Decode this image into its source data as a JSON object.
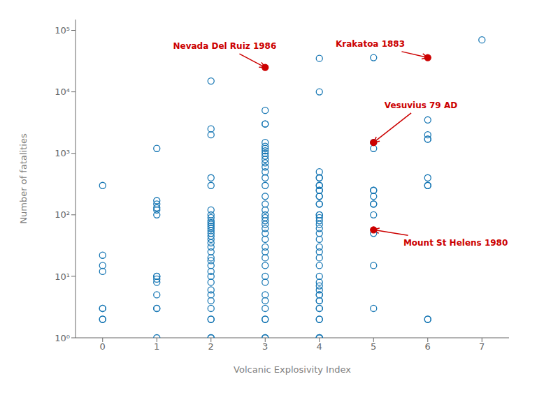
{
  "chart_data": {
    "type": "scatter",
    "xlabel": "Volcanic Explosivity Index",
    "ylabel": "Number of fatalities",
    "xlim": [
      -0.5,
      7.5
    ],
    "ylim": [
      1,
      150000
    ],
    "xticks": [
      0,
      1,
      2,
      3,
      4,
      5,
      6,
      7
    ],
    "yticks": [
      {
        "value": 1,
        "label": "10⁰"
      },
      {
        "value": 10,
        "label": "10¹"
      },
      {
        "value": 100,
        "label": "10²"
      },
      {
        "value": 1000,
        "label": "10³"
      },
      {
        "value": 10000,
        "label": "10⁴"
      },
      {
        "value": 100000,
        "label": "10⁵"
      }
    ],
    "log": "y",
    "grid": false,
    "series": [
      {
        "color": "#1777b4",
        "marker": "circle_open",
        "x": [
          0,
          0,
          0,
          0,
          0,
          0,
          0,
          0,
          1,
          1,
          1,
          1,
          1,
          1,
          1,
          1,
          1,
          1,
          1,
          1,
          1,
          1,
          2,
          2,
          2,
          2,
          2,
          2,
          2,
          2,
          2,
          2,
          2,
          2,
          2,
          2,
          2,
          2,
          2,
          2,
          2,
          2,
          2,
          2,
          2,
          2,
          2,
          2,
          2,
          2,
          2,
          2,
          2,
          2,
          2,
          2,
          3,
          3,
          3,
          3,
          3,
          3,
          3,
          3,
          3,
          3,
          3,
          3,
          3,
          3,
          3,
          3,
          3,
          3,
          3,
          3,
          3,
          3,
          3,
          3,
          3,
          3,
          3,
          3,
          3,
          3,
          3,
          3,
          3,
          3,
          3,
          3,
          3,
          3,
          4,
          4,
          4,
          4,
          4,
          4,
          4,
          4,
          4,
          4,
          4,
          4,
          4,
          4,
          4,
          4,
          4,
          4,
          4,
          4,
          4,
          4,
          4,
          4,
          4,
          4,
          4,
          4,
          4,
          4,
          4,
          4,
          4,
          4,
          4,
          4,
          4,
          4,
          4,
          4,
          5,
          5,
          5,
          5,
          5,
          5,
          5,
          5,
          5,
          5,
          5,
          5,
          6,
          6,
          6,
          6,
          6,
          6,
          6,
          6,
          6,
          7
        ],
        "values": [
          300,
          22,
          15,
          12,
          3,
          3,
          2,
          2,
          1200,
          170,
          150,
          130,
          120,
          100,
          10,
          10,
          9,
          8,
          5,
          3,
          3,
          1,
          15000,
          2500,
          2000,
          400,
          300,
          120,
          100,
          90,
          80,
          75,
          70,
          65,
          60,
          55,
          50,
          45,
          40,
          35,
          30,
          25,
          20,
          18,
          15,
          12,
          10,
          8,
          6,
          5,
          4,
          3,
          2,
          2,
          1,
          1,
          5000,
          3000,
          3000,
          1500,
          1300,
          1200,
          1100,
          1000,
          900,
          800,
          700,
          600,
          500,
          400,
          300,
          200,
          150,
          120,
          100,
          90,
          80,
          70,
          60,
          50,
          40,
          30,
          25,
          20,
          15,
          10,
          8,
          5,
          4,
          3,
          2,
          2,
          1,
          1,
          35000,
          10000,
          500,
          400,
          400,
          300,
          300,
          250,
          250,
          200,
          200,
          150,
          150,
          100,
          100,
          90,
          80,
          70,
          60,
          50,
          40,
          30,
          25,
          20,
          15,
          10,
          8,
          7,
          6,
          5,
          5,
          4,
          4,
          3,
          3,
          2,
          2,
          1,
          1,
          1,
          36000,
          1500,
          1200,
          250,
          250,
          200,
          150,
          150,
          100,
          50,
          15,
          3,
          3500,
          2000,
          1700,
          1700,
          400,
          300,
          300,
          2,
          2,
          70000
        ]
      },
      {
        "color": "#cc0000",
        "marker": "circle",
        "x": [
          3,
          6,
          5,
          5
        ],
        "values": [
          25000,
          36000,
          1500,
          57
        ]
      }
    ],
    "annotations": [
      {
        "text": "Nevada Del Ruiz 1986",
        "x": 3.0,
        "y": 25000,
        "text_x": 1.3,
        "text_y": 55000,
        "color": "#cc0000"
      },
      {
        "text": "Krakatoa 1883",
        "x": 6.0,
        "y": 36000,
        "text_x": 4.3,
        "text_y": 60000,
        "color": "#cc0000"
      },
      {
        "text": "Vesuvius 79 AD",
        "x": 5.0,
        "y": 1500,
        "text_x": 5.2,
        "text_y": 6000,
        "color": "#cc0000"
      },
      {
        "text": "Mount St Helens 1980",
        "x": 5.0,
        "y": 57,
        "text_x": 5.55,
        "text_y": 35,
        "color": "#cc0000"
      }
    ]
  }
}
